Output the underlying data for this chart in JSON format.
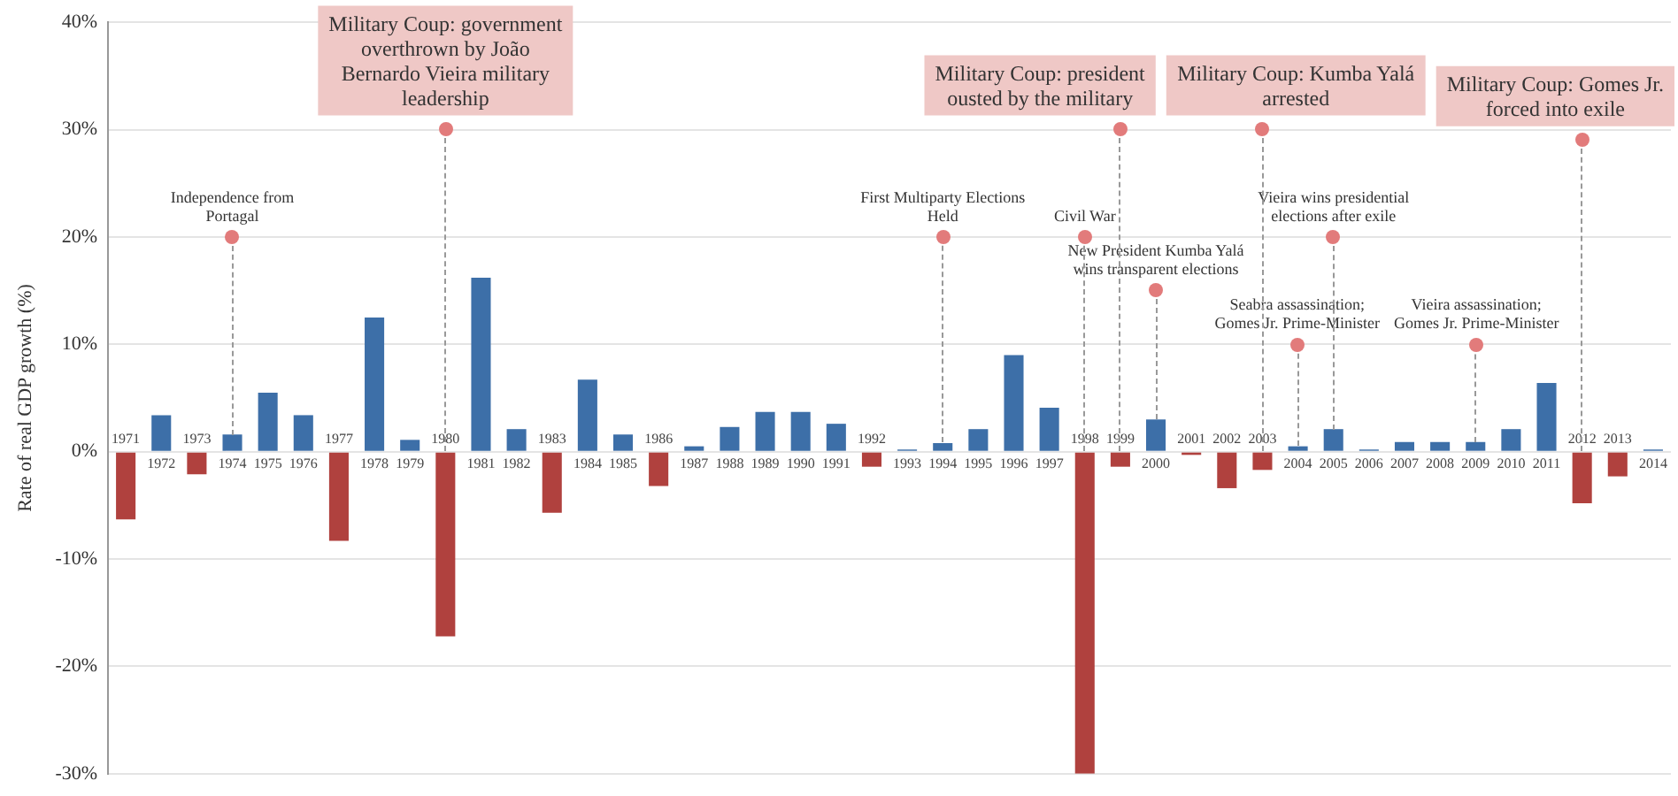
{
  "chart_data": {
    "type": "bar",
    "ylabel": "Rate of real GDP growth (%)",
    "categories": [
      "1971",
      "1972",
      "1973",
      "1974",
      "1975",
      "1976",
      "1977",
      "1978",
      "1979",
      "1980",
      "1981",
      "1982",
      "1983",
      "1984",
      "1985",
      "1986",
      "1987",
      "1988",
      "1989",
      "1990",
      "1991",
      "1992",
      "1993",
      "1994",
      "1995",
      "1996",
      "1997",
      "1998",
      "1999",
      "2000",
      "2001",
      "2002",
      "2003",
      "2004",
      "2005",
      "2006",
      "2007",
      "2008",
      "2009",
      "2010",
      "2011",
      "2012",
      "2013",
      "2014"
    ],
    "values": [
      -6.3,
      3.4,
      -2.1,
      1.6,
      5.5,
      3.4,
      -8.3,
      12.5,
      1.1,
      -17.2,
      16.2,
      2.1,
      -5.7,
      6.7,
      1.6,
      -3.2,
      0.5,
      2.3,
      3.7,
      3.7,
      2.6,
      -1.4,
      0.2,
      0.8,
      2.1,
      9.0,
      4.1,
      -30.0,
      -1.4,
      3.0,
      -0.3,
      -3.4,
      -1.7,
      0.5,
      2.1,
      0.2,
      0.9,
      0.9,
      0.9,
      2.1,
      6.4,
      -4.8,
      -2.3,
      0.2
    ],
    "colors": [
      "#b0413e",
      "#3d6fa8",
      "#b0413e",
      "#3d6fa8",
      "#3d6fa8",
      "#3d6fa8",
      "#b0413e",
      "#3d6fa8",
      "#3d6fa8",
      "#b0413e",
      "#3d6fa8",
      "#3d6fa8",
      "#b0413e",
      "#3d6fa8",
      "#3d6fa8",
      "#b0413e",
      "#3d6fa8",
      "#3d6fa8",
      "#3d6fa8",
      "#3d6fa8",
      "#3d6fa8",
      "#b0413e",
      "#3d6fa8",
      "#3d6fa8",
      "#3d6fa8",
      "#3d6fa8",
      "#3d6fa8",
      "#b0413e",
      "#b0413e",
      "#3d6fa8",
      "#b0413e",
      "#b0413e",
      "#b0413e",
      "#3d6fa8",
      "#3d6fa8",
      "#3d6fa8",
      "#3d6fa8",
      "#3d6fa8",
      "#3d6fa8",
      "#3d6fa8",
      "#3d6fa8",
      "#b0413e",
      "#b0413e",
      "#3d6fa8"
    ],
    "ylim": [
      -30,
      40
    ],
    "yticks": [
      {
        "value": -30,
        "label": "-30%"
      },
      {
        "value": -20,
        "label": "-20%"
      },
      {
        "value": -10,
        "label": "-10%"
      },
      {
        "value": 0,
        "label": "0%"
      },
      {
        "value": 10,
        "label": "10%"
      },
      {
        "value": 20,
        "label": "20%"
      },
      {
        "value": 30,
        "label": "30%"
      },
      {
        "value": 40,
        "label": "40%"
      }
    ],
    "grid": "y",
    "annotations": [
      {
        "text": "Independence from Portagal",
        "x": "1974",
        "y": 20
      },
      {
        "text": "Military Coup: government overthrown by João Bernardo Vieira military leadership",
        "x": "1980",
        "y": 30
      },
      {
        "text": "First Multiparty Elections Held",
        "x": "1994",
        "y": 20
      },
      {
        "text": "Civil War",
        "x": "1998",
        "y": 20
      },
      {
        "text": "Military Coup: president ousted by the military",
        "x": "1999",
        "y": 30
      },
      {
        "text": "New President Kumba Yalá wins transparent elections",
        "x": "2000",
        "y": 15
      },
      {
        "text": "Military Coup: Kumba Yalá arrested",
        "x": "2003",
        "y": 30
      },
      {
        "text": "Seabra assassination; Gomes Jr. Prime-Minister",
        "x": "2004",
        "y": 10
      },
      {
        "text": "Vieira wins presidential elections after exile",
        "x": "2005",
        "y": 20
      },
      {
        "text": "Vieira assassination; Gomes Jr. Prime-Minister",
        "x": "2009",
        "y": 10
      },
      {
        "text": "Military Coup: Gomes Jr. forced into exile",
        "x": "2012",
        "y": 29
      }
    ]
  }
}
